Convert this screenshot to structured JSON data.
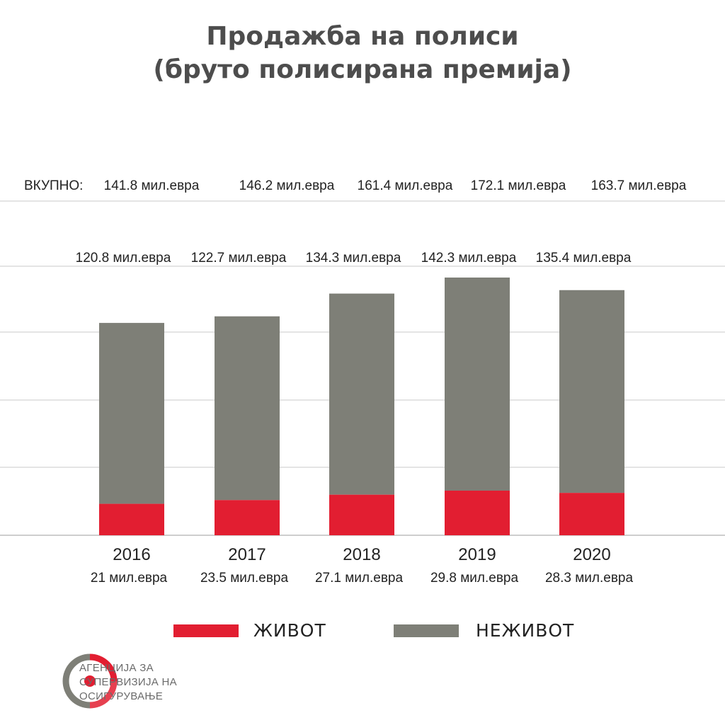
{
  "title": {
    "line1": "Продажба на полиси",
    "line2": "(бруто полисирана премија)"
  },
  "total_prefix": "ВКУПНО:",
  "chart_data": {
    "type": "bar",
    "stacked": true,
    "categories": [
      "2016",
      "2017",
      "2018",
      "2019",
      "2020"
    ],
    "series": [
      {
        "name": "ЖИВОТ",
        "values": [
          21,
          23.5,
          27.1,
          29.8,
          28.3
        ],
        "labels": [
          "21 мил.евра",
          "23.5 мил.евра",
          "27.1 мил.евра",
          "29.8 мил.евра",
          "28.3 мил.евра"
        ],
        "color": "#e21e31"
      },
      {
        "name": "НЕЖИВОТ",
        "values": [
          120.8,
          122.7,
          134.3,
          142.3,
          135.4
        ],
        "labels": [
          "120.8 мил.евра",
          "122.7 мил.евра",
          "134.3 мил.евра",
          "142.3 мил.евра",
          "135.4 мил.евра"
        ],
        "color": "#7e7f77"
      }
    ],
    "totals": [
      141.8,
      146.2,
      161.4,
      172.1,
      163.7
    ],
    "total_labels": [
      "141.8 мил.евра",
      "146.2 мил.евра",
      "161.4 мил.евра",
      "172.1 мил.евра",
      "163.7 мил.евра"
    ],
    "ylim": [
      0,
      180
    ],
    "grid": true,
    "legend": "bottom"
  },
  "legend": {
    "life": "ЖИВОТ",
    "nonlife": "НЕЖИВОТ"
  },
  "logo": {
    "line1": "АГЕНЦИЈА ЗА",
    "line2": "СУПЕРВИЗИЈА НА",
    "line3": "ОСИГУРУВАЊЕ"
  },
  "colors": {
    "life": "#e21e31",
    "nonlife": "#7e7f77",
    "grid": "#c8c8c8",
    "title": "#4d4d4d"
  }
}
